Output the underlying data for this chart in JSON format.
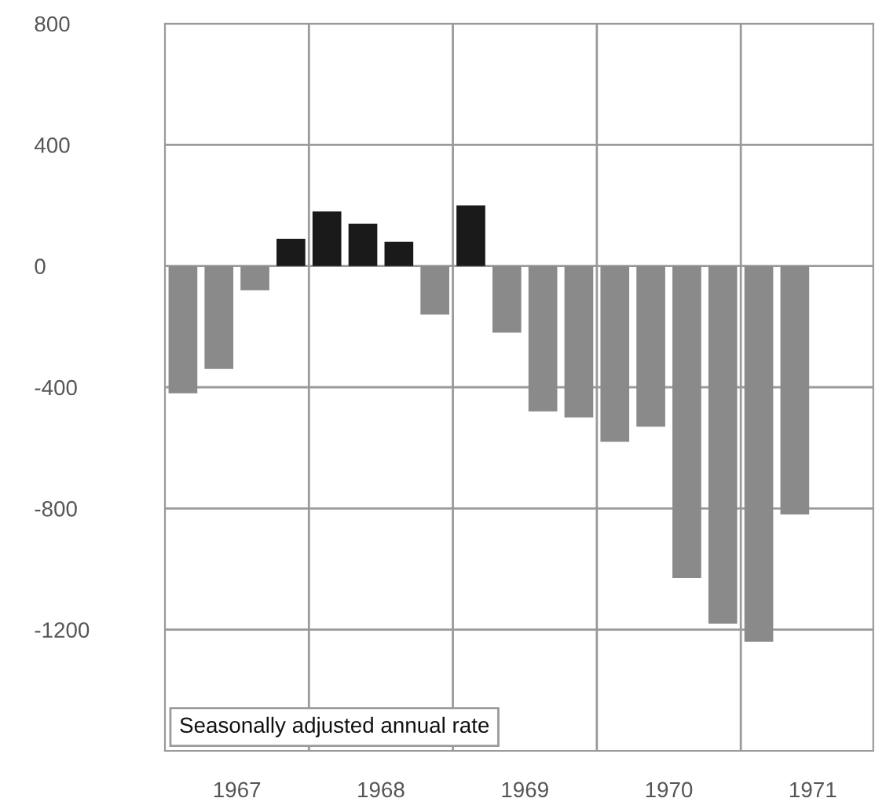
{
  "chart_data": {
    "type": "bar",
    "x": [
      1967.125,
      1967.375,
      1967.625,
      1967.875,
      1968.125,
      1968.375,
      1968.625,
      1968.875,
      1969.125,
      1969.375,
      1969.625,
      1969.875,
      1970.125,
      1970.375,
      1970.625,
      1970.875,
      1971.125,
      1971.375
    ],
    "values": [
      -420,
      -340,
      -80,
      90,
      180,
      140,
      80,
      -160,
      200,
      -220,
      -480,
      -500,
      -580,
      -530,
      -1030,
      -1180,
      -1240,
      -820
    ],
    "colors": [
      "#8a8a8a",
      "#8a8a8a",
      "#8a8a8a",
      "#1a1a1a",
      "#1a1a1a",
      "#1a1a1a",
      "#1a1a1a",
      "#8a8a8a",
      "#1a1a1a",
      "#8a8a8a",
      "#8a8a8a",
      "#8a8a8a",
      "#8a8a8a",
      "#8a8a8a",
      "#8a8a8a",
      "#8a8a8a",
      "#8a8a8a",
      "#8a8a8a"
    ],
    "xlim": [
      1967,
      1971.92
    ],
    "xticks": [
      {
        "value": 1967.5,
        "label": "1967"
      },
      {
        "value": 1968.5,
        "label": "1968"
      },
      {
        "value": 1969.5,
        "label": "1969"
      },
      {
        "value": 1970.5,
        "label": "1970"
      },
      {
        "value": 1971.5,
        "label": "1971"
      }
    ],
    "ylim": [
      -1600,
      800
    ],
    "yticks": [
      800,
      400,
      0,
      -400,
      -800,
      -1200
    ],
    "grid": "y",
    "ref_lines": [
      {
        "axis": "x",
        "value": 1968,
        "color": "#9a9a9a"
      },
      {
        "axis": "x",
        "value": 1969,
        "color": "#9a9a9a"
      },
      {
        "axis": "x",
        "value": 1970,
        "color": "#9a9a9a"
      },
      {
        "axis": "x",
        "value": 1971,
        "color": "#9a9a9a"
      }
    ],
    "annotations": [
      "Seasonally adjusted annual rate"
    ]
  }
}
